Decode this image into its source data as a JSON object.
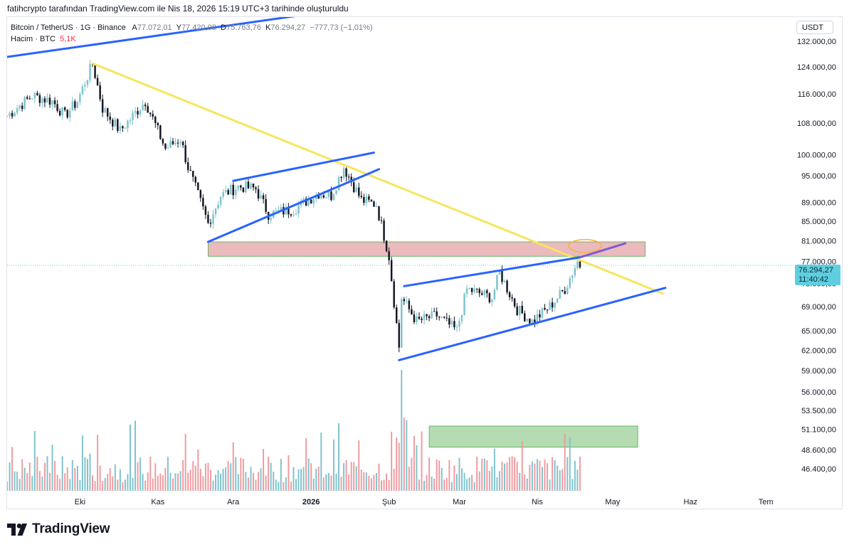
{
  "credit": "fatihcrypto tarafından TradingView.com ile Nis 18, 2026 15:19 UTC+3 tarihinde oluşturuldu",
  "legend": {
    "symbol": "Bitcoin / TetherUS · 1G · Binance",
    "o_key": "A",
    "o_val": "77.072,01",
    "h_key": "Y",
    "h_val": "77.420,08",
    "l_key": "D",
    "l_val": "75.763,76",
    "c_key": "K",
    "c_val": "76.294,27",
    "change": "−777,73 (−1,01%)",
    "volume_label": "Hacim · BTC",
    "volume_value": "5,1K"
  },
  "currency_button": "USDT",
  "price_tag": {
    "price": "76.294,27",
    "countdown": "11:40:42"
  },
  "brand": "TradingView",
  "colors": {
    "up": "#7ec2cc",
    "down": "#131722",
    "vol_up": "#7ec2cc",
    "vol_down": "#ee9a9e",
    "trendline": "#2962ff",
    "downtrend": "#f7e55c",
    "resistance_zone": "#e8aeb2",
    "volume_zone": "#a8d5a5"
  },
  "chart_data": {
    "type": "candlestick",
    "y_scale": "log",
    "ylim": [
      43500,
      140000
    ],
    "y_ticks": [
      {
        "v": 132000,
        "label": "132.000,00"
      },
      {
        "v": 124000,
        "label": "124.000,00"
      },
      {
        "v": 116000,
        "label": "116.000,00"
      },
      {
        "v": 108000,
        "label": "108.000,00"
      },
      {
        "v": 100000,
        "label": "100.000,00"
      },
      {
        "v": 95000,
        "label": "95.000,00"
      },
      {
        "v": 89000,
        "label": "89.000,00"
      },
      {
        "v": 85000,
        "label": "85.000,00"
      },
      {
        "v": 81000,
        "label": "81.000,00"
      },
      {
        "v": 77000,
        "label": "77.000,00"
      },
      {
        "v": 73000,
        "label": "73.000,00"
      },
      {
        "v": 69000,
        "label": "69.000,00"
      },
      {
        "v": 65000,
        "label": "65.000,00"
      },
      {
        "v": 62000,
        "label": "62.000,00"
      },
      {
        "v": 59000,
        "label": "59.000,00"
      },
      {
        "v": 56000,
        "label": "56.000,00"
      },
      {
        "v": 53500,
        "label": "53.500,00"
      },
      {
        "v": 51100,
        "label": "51.100,00"
      },
      {
        "v": 48600,
        "label": "48.600,00"
      },
      {
        "v": 46400,
        "label": "46.400,00"
      }
    ],
    "x_ticks": [
      {
        "date": "2025-10-01",
        "label": "Eki"
      },
      {
        "date": "2025-11-01",
        "label": "Kas"
      },
      {
        "date": "2025-12-01",
        "label": "Ara"
      },
      {
        "date": "2026-01-01",
        "label": "2026"
      },
      {
        "date": "2026-02-01",
        "label": "Şub"
      },
      {
        "date": "2026-03-01",
        "label": "Mar"
      },
      {
        "date": "2026-04-01",
        "label": "Nis"
      },
      {
        "date": "2026-05-01",
        "label": "May"
      },
      {
        "date": "2026-06-01",
        "label": "Haz"
      },
      {
        "date": "2026-07-01",
        "label": "Tem"
      }
    ],
    "xlim": [
      "2025-09-02",
      "2026-07-12"
    ],
    "close_anchors": [
      [
        "2025-09-02",
        110000
      ],
      [
        "2025-09-12",
        115500
      ],
      [
        "2025-09-20",
        114000
      ],
      [
        "2025-09-25",
        110000
      ],
      [
        "2025-09-30",
        114000
      ],
      [
        "2025-10-06",
        125000
      ],
      [
        "2025-10-10",
        112000
      ],
      [
        "2025-10-17",
        106000
      ],
      [
        "2025-10-27",
        114000
      ],
      [
        "2025-11-04",
        101500
      ],
      [
        "2025-11-10",
        104000
      ],
      [
        "2025-11-13",
        97000
      ],
      [
        "2025-11-21",
        84500
      ],
      [
        "2025-11-26",
        90500
      ],
      [
        "2025-12-03",
        92500
      ],
      [
        "2025-12-10",
        92000
      ],
      [
        "2025-12-15",
        86500
      ],
      [
        "2025-12-25",
        87500
      ],
      [
        "2026-01-04",
        91000
      ],
      [
        "2026-01-09",
        90500
      ],
      [
        "2026-01-14",
        97000
      ],
      [
        "2026-01-21",
        89500
      ],
      [
        "2026-01-27",
        88500
      ],
      [
        "2026-02-01",
        78000
      ],
      [
        "2026-02-05",
        62500
      ],
      [
        "2026-02-06",
        70500
      ],
      [
        "2026-02-12",
        66500
      ],
      [
        "2026-02-20",
        67500
      ],
      [
        "2026-02-28",
        65000
      ],
      [
        "2026-03-04",
        72000
      ],
      [
        "2026-03-14",
        70500
      ],
      [
        "2026-03-17",
        75000
      ],
      [
        "2026-03-24",
        68500
      ],
      [
        "2026-03-30",
        66500
      ],
      [
        "2026-04-06",
        69000
      ],
      [
        "2026-04-12",
        72000
      ],
      [
        "2026-04-17",
        77000
      ],
      [
        "2026-04-18",
        76294
      ]
    ],
    "last_price": 76294.27,
    "volume_window": [
      "2025-09-02",
      "2026-04-18"
    ],
    "volume_spike_date": "2026-02-06",
    "drawings": [
      {
        "kind": "line",
        "color": "blue",
        "from": [
          "2025-09-02",
          127000
        ],
        "to": [
          "2025-12-31",
          141000
        ]
      },
      {
        "kind": "line",
        "color": "yellow",
        "from": [
          "2025-10-06",
          125000
        ],
        "to": [
          "2026-05-21",
          71200
        ]
      },
      {
        "kind": "line",
        "color": "blue",
        "from": [
          "2025-11-21",
          80800
        ],
        "to": [
          "2026-01-28",
          96500
        ]
      },
      {
        "kind": "line",
        "color": "blue",
        "from": [
          "2025-12-01",
          93800
        ],
        "to": [
          "2026-01-26",
          100500
        ]
      },
      {
        "kind": "line",
        "color": "blue",
        "from": [
          "2026-02-05",
          60500
        ],
        "to": [
          "2026-05-22",
          72200
        ]
      },
      {
        "kind": "line",
        "color": "blue",
        "from": [
          "2026-02-07",
          72500
        ],
        "to": [
          "2026-04-18",
          77800
        ]
      },
      {
        "kind": "line",
        "color": "purple",
        "from": [
          "2026-04-18",
          77800
        ],
        "to": [
          "2026-05-06",
          80500
        ]
      },
      {
        "kind": "zone",
        "color": "red",
        "from": [
          "2025-11-21",
          80800
        ],
        "to": [
          "2026-05-14",
          78000
        ]
      },
      {
        "kind": "zone",
        "color": "green",
        "from": [
          "2026-02-17",
          51500
        ],
        "to": [
          "2026-05-11",
          48900
        ]
      },
      {
        "kind": "ellipse",
        "color": "orange",
        "center": [
          "2026-04-20",
          80000
        ]
      }
    ]
  }
}
